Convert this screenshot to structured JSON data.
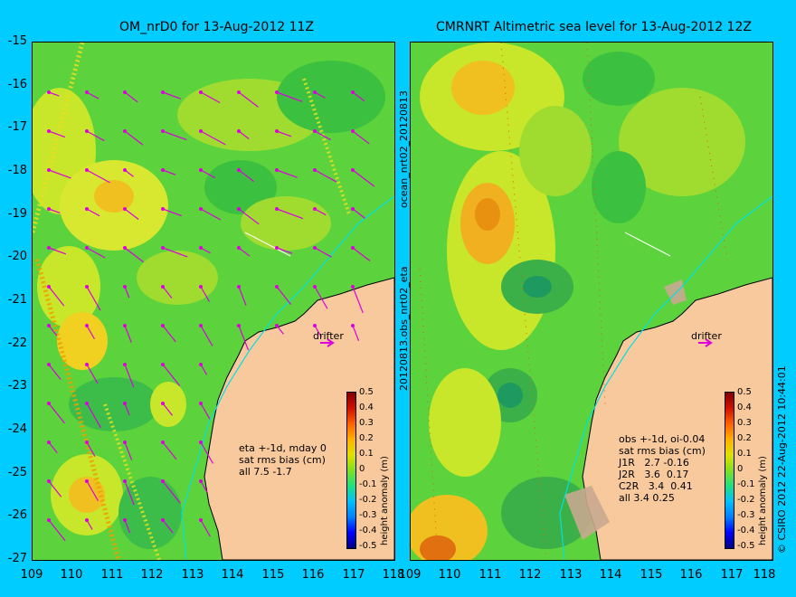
{
  "left_panel": {
    "title": "OM_nrD0 for 13-Aug-2012 11Z",
    "note": "eta +-1d, mday 0\nsat rms bias (cm)\nall 7.5 -1.7",
    "drifter_label": "drifter"
  },
  "right_panel": {
    "title": "CMRNRT Altimetric sea level  for 13-Aug-2012 12Z",
    "note": "obs +-1d, oi-0.04\nsat rms bias (cm)\nJ1R   2.7 -0.16\nJ2R   3.6  0.17\nC2R   3.4  0.41\nall 3.4 0.25",
    "drifter_label": "drifter"
  },
  "axes": {
    "y_ticks": [
      "-15",
      "-16",
      "-17",
      "-18",
      "-19",
      "-20",
      "-21",
      "-22",
      "-23",
      "-24",
      "-25",
      "-26",
      "-27"
    ],
    "x_ticks": [
      "109",
      "110",
      "111",
      "112",
      "113",
      "114",
      "115",
      "116",
      "117",
      "118"
    ],
    "lat_range": [
      -27,
      -15
    ],
    "lon_range": [
      109,
      118
    ]
  },
  "colorbar": {
    "ticks": [
      "0.5",
      "0.4",
      "0.3",
      "0.2",
      "0.1",
      "0",
      "-0.1",
      "-0.2",
      "-0.3",
      "-0.4",
      "-0.5"
    ],
    "label": "height anomaly (m)"
  },
  "side_labels": {
    "middle": "20120813.obs_nrt02_eta",
    "middle_top": "ocean_nrt02_20120813",
    "right_edge": "© CSIRO 2012   22-Aug-2012 10:44:01"
  },
  "colors": {
    "background": "#00ccff",
    "land": "#f9c99e",
    "sea": "#5cd23c",
    "vector": "#dd00dd",
    "coast_line": "#00e0e0"
  }
}
